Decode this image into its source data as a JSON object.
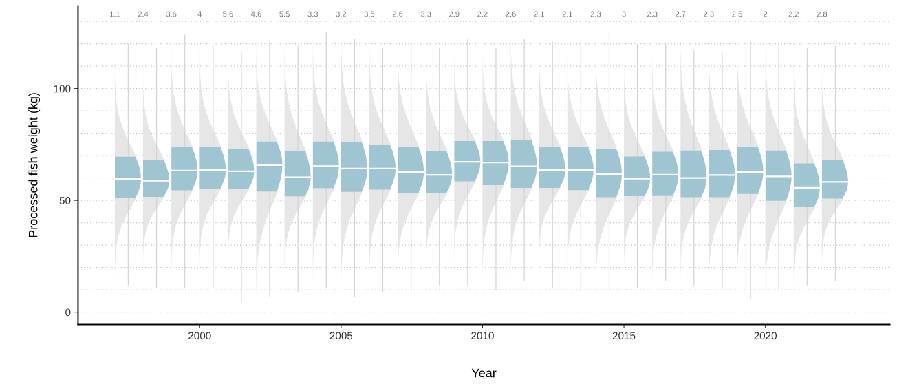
{
  "chart_data": {
    "type": "box",
    "xlabel": "Year",
    "ylabel": "Processed fish weight (kg)",
    "x": [
      1997,
      1998,
      1999,
      2000,
      2001,
      2002,
      2003,
      2004,
      2005,
      2006,
      2007,
      2008,
      2009,
      2010,
      2011,
      2012,
      2013,
      2014,
      2015,
      2016,
      2017,
      2018,
      2019,
      2020,
      2021,
      2022
    ],
    "color": "#9fc5d3",
    "boxes": [
      {
        "low": 12,
        "q1": 51.0,
        "median": 59.6,
        "q3": 69.5,
        "high": 120
      },
      {
        "low": 11,
        "q1": 51.6,
        "median": 58.8,
        "q3": 68.0,
        "high": 118
      },
      {
        "low": 11,
        "q1": 54.5,
        "median": 63.3,
        "q3": 73.8,
        "high": 124
      },
      {
        "low": 11,
        "q1": 55.2,
        "median": 63.6,
        "q3": 74.0,
        "high": 120
      },
      {
        "low": 4,
        "q1": 55.2,
        "median": 63.0,
        "q3": 73.0,
        "high": 116
      },
      {
        "low": 7,
        "q1": 54.0,
        "median": 65.8,
        "q3": 76.3,
        "high": 121
      },
      {
        "low": 9,
        "q1": 51.8,
        "median": 60.3,
        "q3": 72.0,
        "high": 119
      },
      {
        "low": 11,
        "q1": 55.5,
        "median": 65.3,
        "q3": 76.3,
        "high": 125
      },
      {
        "low": 7,
        "q1": 53.8,
        "median": 64.2,
        "q3": 76.0,
        "high": 122
      },
      {
        "low": 9,
        "q1": 54.8,
        "median": 64.2,
        "q3": 75.0,
        "high": 118
      },
      {
        "low": 10,
        "q1": 53.3,
        "median": 62.7,
        "q3": 74.0,
        "high": 119
      },
      {
        "low": 12,
        "q1": 53.3,
        "median": 61.4,
        "q3": 72.0,
        "high": 118
      },
      {
        "low": 12,
        "q1": 58.5,
        "median": 67.2,
        "q3": 76.5,
        "high": 122
      },
      {
        "low": 10,
        "q1": 56.8,
        "median": 66.9,
        "q3": 76.5,
        "high": 118
      },
      {
        "low": 14,
        "q1": 55.6,
        "median": 65.2,
        "q3": 76.8,
        "high": 122
      },
      {
        "low": 11,
        "q1": 55.6,
        "median": 63.6,
        "q3": 74.0,
        "high": 121
      },
      {
        "low": 9,
        "q1": 54.6,
        "median": 63.6,
        "q3": 73.7,
        "high": 121
      },
      {
        "low": 10,
        "q1": 51.4,
        "median": 61.8,
        "q3": 73.1,
        "high": 125
      },
      {
        "low": 11,
        "q1": 51.9,
        "median": 59.7,
        "q3": 69.6,
        "high": 120
      },
      {
        "low": 14,
        "q1": 52.0,
        "median": 61.5,
        "q3": 71.7,
        "high": 120
      },
      {
        "low": 12,
        "q1": 51.4,
        "median": 60.0,
        "q3": 72.3,
        "high": 117
      },
      {
        "low": 11,
        "q1": 51.4,
        "median": 61.3,
        "q3": 72.5,
        "high": 116
      },
      {
        "low": 6,
        "q1": 52.9,
        "median": 62.7,
        "q3": 74.0,
        "high": 121
      },
      {
        "low": 10,
        "q1": 49.8,
        "median": 60.7,
        "q3": 72.3,
        "high": 119
      },
      {
        "low": 12,
        "q1": 47.0,
        "median": 55.6,
        "q3": 66.5,
        "high": 118
      },
      {
        "low": 14,
        "q1": 50.8,
        "median": 58.2,
        "q3": 68.1,
        "high": 119
      }
    ],
    "annotations": [
      "1.1",
      "2.4",
      "3.6",
      "4",
      "5.6",
      "4.6",
      "5.5",
      "3.3",
      "3.2",
      "3.5",
      "2.6",
      "3.3",
      "2.9",
      "2.2",
      "2.6",
      "2.1",
      "2.1",
      "2.3",
      "3",
      "2.3",
      "2.7",
      "2.3",
      "2.5",
      "2",
      "2.2",
      "2.8"
    ],
    "xlim": [
      1995.7,
      2024.4
    ],
    "xticks": [
      2000,
      2005,
      2010,
      2015,
      2020
    ],
    "ylim": [
      -5.5,
      137
    ],
    "yticks": [
      0,
      {
        "value": 10,
        "label": null
      },
      {
        "value": 20,
        "label": null
      },
      {
        "value": 30,
        "label": null
      },
      {
        "value": 40,
        "label": null
      },
      50,
      {
        "value": 60,
        "label": null
      },
      {
        "value": 70,
        "label": null
      },
      {
        "value": 80,
        "label": null
      },
      {
        "value": 90,
        "label": null
      },
      100,
      {
        "value": 110,
        "label": null
      },
      {
        "value": 120,
        "label": null
      },
      {
        "value": 130,
        "label": null
      }
    ],
    "grid": "y"
  }
}
